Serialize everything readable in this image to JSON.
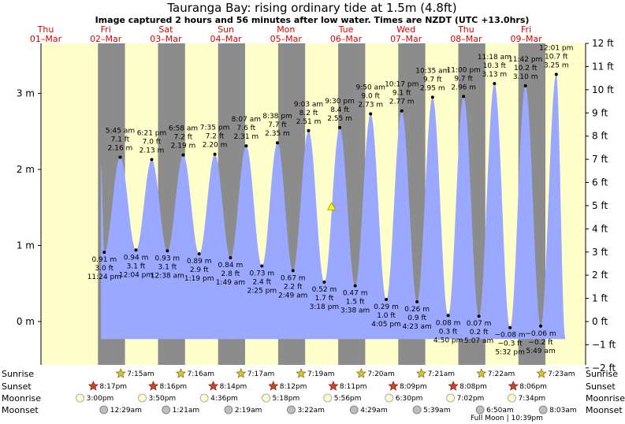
{
  "header": {
    "title": "Tauranga Bay: rising  ordinary tide at 1.5m (4.8ft)",
    "subtitle": "Image captured 2 hours and 56 minutes after low water. Times are NZDT (UTC +13.0hrs)"
  },
  "colors": {
    "day_bg": "#ffffcc",
    "night_bg": "#8c8c8c",
    "tide_fill": "#9aa8ff",
    "day_text": "#e00000",
    "marker": "#ffff00"
  },
  "days": [
    {
      "dow": "Thu",
      "date": "01–Mar"
    },
    {
      "dow": "Fri",
      "date": "02–Mar"
    },
    {
      "dow": "Sat",
      "date": "03–Mar"
    },
    {
      "dow": "Sun",
      "date": "04–Mar"
    },
    {
      "dow": "Mon",
      "date": "05–Mar"
    },
    {
      "dow": "Tue",
      "date": "06–Mar"
    },
    {
      "dow": "Wed",
      "date": "07–Mar"
    },
    {
      "dow": "Thu",
      "date": "08–Mar"
    },
    {
      "dow": "Fri",
      "date": "09–Mar"
    }
  ],
  "chart_data": {
    "type": "area",
    "x_unit": "days since 00:00 01-Mar (NZDT)",
    "current_level": 1.5,
    "y_left_label": "m",
    "y_left_ticks": [
      "3 m",
      "2 m",
      "1 m",
      "0 m"
    ],
    "y_right_ticks": [
      "12 ft",
      "11 ft",
      "10 ft",
      "9 ft",
      "8 ft",
      "7 ft",
      "6 ft",
      "5 ft",
      "4 ft",
      "3 ft",
      "2 ft",
      "1 ft",
      "0 ft",
      "−1 ft",
      "−2 ft"
    ],
    "night_spans": [
      [
        0.87,
        1.32
      ],
      [
        1.87,
        2.32
      ],
      [
        2.87,
        3.32
      ],
      [
        3.87,
        4.32
      ],
      [
        4.87,
        5.32
      ],
      [
        5.87,
        6.32
      ],
      [
        6.87,
        7.32
      ],
      [
        7.87,
        8.32
      ]
    ],
    "tides": [
      {
        "t": 0.975,
        "m": 0.91,
        "ft": "3.0 ft",
        "time": "11:24 pm",
        "m_label": "0.91 m",
        "type": "low"
      },
      {
        "t": 1.24,
        "m": 2.16,
        "ft": "7.1 ft",
        "time": "5:45 am",
        "m_label": "2.16 m",
        "type": "high"
      },
      {
        "t": 1.503,
        "m": 0.94,
        "ft": "3.1 ft",
        "time": "12:04 pm",
        "m_label": "0.94 m",
        "type": "low"
      },
      {
        "t": 1.765,
        "m": 2.13,
        "ft": "7.0 ft",
        "time": "6:21 pm",
        "m_label": "2.13 m",
        "type": "high"
      },
      {
        "t": 2.026,
        "m": 0.93,
        "ft": "3.1 ft",
        "time": "12:38 am",
        "m_label": "0.93 m",
        "type": "low"
      },
      {
        "t": 2.29,
        "m": 2.19,
        "ft": "7.2 ft",
        "time": "6:58 am",
        "m_label": "2.19 m",
        "type": "high"
      },
      {
        "t": 2.555,
        "m": 0.89,
        "ft": "2.9 ft",
        "time": "1:19 pm",
        "m_label": "0.89 m",
        "type": "low"
      },
      {
        "t": 2.816,
        "m": 2.2,
        "ft": "7.2 ft",
        "time": "7:35 pm",
        "m_label": "2.20 m",
        "type": "high"
      },
      {
        "t": 3.076,
        "m": 0.84,
        "ft": "2.8 ft",
        "time": "1:49 am",
        "m_label": "0.84 m",
        "type": "low"
      },
      {
        "t": 3.338,
        "m": 2.31,
        "ft": "7.6 ft",
        "time": "8:07 am",
        "m_label": "2.31 m",
        "type": "high"
      },
      {
        "t": 3.6,
        "m": 0.73,
        "ft": "2.4 ft",
        "time": "2:25 pm",
        "m_label": "0.73 m",
        "type": "low"
      },
      {
        "t": 3.858,
        "m": 2.35,
        "ft": "7.7 ft",
        "time": "8:38 pm",
        "m_label": "2.35 m",
        "type": "high"
      },
      {
        "t": 4.117,
        "m": 0.67,
        "ft": "2.2 ft",
        "time": "2:49 am",
        "m_label": "0.67 m",
        "type": "low"
      },
      {
        "t": 4.377,
        "m": 2.51,
        "ft": "8.2 ft",
        "time": "9:03 am",
        "m_label": "2.51 m",
        "type": "high"
      },
      {
        "t": 4.638,
        "m": 0.52,
        "ft": "1.7 ft",
        "time": "3:18 pm",
        "m_label": "0.52 m",
        "type": "low"
      },
      {
        "t": 4.896,
        "m": 2.55,
        "ft": "8.4 ft",
        "time": "9:30 pm",
        "m_label": "2.55 m",
        "type": "high"
      },
      {
        "t": 5.153,
        "m": 0.47,
        "ft": "1.5 ft",
        "time": "3:38 am",
        "m_label": "0.47 m",
        "type": "low"
      },
      {
        "t": 5.41,
        "m": 2.73,
        "ft": "9.0 ft",
        "time": "9:50 am",
        "m_label": "2.73 m",
        "type": "high"
      },
      {
        "t": 5.67,
        "m": 0.29,
        "ft": "1.0 ft",
        "time": "4:05 pm",
        "m_label": "0.29 m",
        "type": "low"
      },
      {
        "t": 5.928,
        "m": 2.77,
        "ft": "9.1 ft",
        "time": "10:17 pm",
        "m_label": "2.77 m",
        "type": "high"
      },
      {
        "t": 6.183,
        "m": 0.26,
        "ft": "0.9 ft",
        "time": "4:23 am",
        "m_label": "0.26 m",
        "type": "low"
      },
      {
        "t": 6.441,
        "m": 2.95,
        "ft": "9.7 ft",
        "time": "10:35 am",
        "m_label": "2.95 m",
        "type": "high"
      },
      {
        "t": 6.701,
        "m": 0.08,
        "ft": "0.3 ft",
        "time": "4:50 pm",
        "m_label": "0.08 m",
        "type": "low"
      },
      {
        "t": 6.958,
        "m": 2.96,
        "ft": "9.7 ft",
        "time": "11:00 pm",
        "m_label": "2.96 m",
        "type": "high"
      },
      {
        "t": 7.213,
        "m": 0.07,
        "ft": "0.2 ft",
        "time": "5:07 am",
        "m_label": "0.07 m",
        "type": "low"
      },
      {
        "t": 7.472,
        "m": 3.13,
        "ft": "10.3 ft",
        "time": "11:18 am",
        "m_label": "3.13 m",
        "type": "high"
      },
      {
        "t": 7.731,
        "m": -0.08,
        "ft": "−0.3 ft",
        "time": "5:32 pm",
        "m_label": "−0.08 m",
        "type": "low"
      },
      {
        "t": 7.988,
        "m": 3.1,
        "ft": "10.2 ft",
        "time": "11:42 pm",
        "m_label": "3.10 m",
        "type": "high"
      },
      {
        "t": 8.242,
        "m": -0.06,
        "ft": "−0.2 ft",
        "time": "5:49 am",
        "m_label": "−0.06 m",
        "type": "low"
      },
      {
        "t": 8.501,
        "m": 3.25,
        "ft": "10.7 ft",
        "time": "12:01 pm",
        "m_label": "3.25 m",
        "type": "high"
      }
    ]
  },
  "rows": {
    "labels": [
      "Sunrise",
      "Sunset",
      "Moonrise",
      "Moonset"
    ],
    "sunrise": [
      {
        "t": 1.302,
        "time": "7:15am"
      },
      {
        "t": 2.303,
        "time": "7:16am"
      },
      {
        "t": 3.304,
        "time": "7:17am"
      },
      {
        "t": 4.305,
        "time": "7:19am"
      },
      {
        "t": 5.306,
        "time": "7:20am"
      },
      {
        "t": 6.307,
        "time": "7:21am"
      },
      {
        "t": 7.307,
        "time": "7:22am"
      },
      {
        "t": 8.308,
        "time": "7:23am"
      }
    ],
    "sunset": [
      {
        "t": 0.845,
        "time": "8:17pm"
      },
      {
        "t": 1.844,
        "time": "8:16pm"
      },
      {
        "t": 2.843,
        "time": "8:14pm"
      },
      {
        "t": 3.842,
        "time": "8:12pm"
      },
      {
        "t": 4.841,
        "time": "8:11pm"
      },
      {
        "t": 5.84,
        "time": "8:09pm"
      },
      {
        "t": 6.839,
        "time": "8:08pm"
      },
      {
        "t": 7.838,
        "time": "8:06pm"
      }
    ],
    "moonrise": [
      {
        "t": 0.625,
        "time": "3:00pm"
      },
      {
        "t": 1.66,
        "time": "3:50pm"
      },
      {
        "t": 2.692,
        "time": "4:36pm"
      },
      {
        "t": 3.721,
        "time": "5:18pm"
      },
      {
        "t": 4.747,
        "time": "5:56pm"
      },
      {
        "t": 5.771,
        "time": "6:30pm"
      },
      {
        "t": 6.793,
        "time": "7:02pm"
      },
      {
        "t": 7.815,
        "time": "7:34pm"
      }
    ],
    "moonset": [
      {
        "t": 1.02,
        "time": "12:29am"
      },
      {
        "t": 2.056,
        "time": "1:21am"
      },
      {
        "t": 3.096,
        "time": "2:19am"
      },
      {
        "t": 4.14,
        "time": "3:22am"
      },
      {
        "t": 5.187,
        "time": "4:29am"
      },
      {
        "t": 6.235,
        "time": "5:39am"
      },
      {
        "t": 7.285,
        "time": "6:50am"
      },
      {
        "t": 8.335,
        "time": "8:03am"
      }
    ],
    "moon_phase": "Full Moon | 10:39pm"
  }
}
